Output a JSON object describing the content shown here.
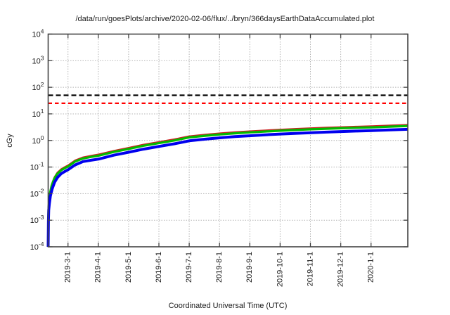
{
  "chart_data": {
    "type": "line",
    "title": "/data/run/goesPlots/archive/2020-02-06/flux/../bryn/366daysEarthDataAccumulated.plot",
    "xlabel": "Coordinated Universal Time (UTC)",
    "ylabel": "cGy",
    "y_scale": "log",
    "ylim": [
      0.0001,
      10000
    ],
    "y_tick_exponents": [
      4,
      3,
      2,
      1,
      0,
      -1,
      -2,
      -3,
      -4
    ],
    "y_tick_base": "10",
    "x_tick_labels": [
      "2019-3-1",
      "2019-4-1",
      "2019-5-1",
      "2019-6-1",
      "2019-7-1",
      "2019-8-1",
      "2019-9-1",
      "2019-10-1",
      "2019-11-1",
      "2019-12-1",
      "2020-1-1"
    ],
    "grid": true,
    "legend": "none",
    "thresholds": [
      {
        "name": "upper-limit-line",
        "value": 50,
        "color": "#000000",
        "style": "dashed"
      },
      {
        "name": "lower-limit-line",
        "value": 25,
        "color": "#ff0000",
        "style": "dashed"
      }
    ],
    "series": [
      {
        "name": "red-line",
        "color": "#cc2222",
        "width": 1.6,
        "points": [
          [
            0.02,
            0.00011
          ],
          [
            0.05,
            0.00023
          ],
          [
            0.2,
            0.0014
          ],
          [
            0.5,
            0.0034
          ],
          [
            1,
            0.0062
          ],
          [
            2,
            0.0124
          ],
          [
            3.5,
            0.023
          ],
          [
            6,
            0.041
          ],
          [
            9,
            0.062
          ],
          [
            13,
            0.085
          ],
          [
            17,
            0.104
          ],
          [
            20,
            0.119
          ],
          [
            27,
            0.181
          ],
          [
            35,
            0.237
          ],
          [
            43,
            0.271
          ],
          [
            51,
            0.305
          ],
          [
            66,
            0.418
          ],
          [
            81,
            0.542
          ],
          [
            96,
            0.712
          ],
          [
            112,
            0.904
          ],
          [
            127,
            1.13
          ],
          [
            142,
            1.47
          ],
          [
            158,
            1.7
          ],
          [
            173,
            1.9
          ],
          [
            188,
            2.09
          ],
          [
            204,
            2.28
          ],
          [
            219,
            2.46
          ],
          [
            234,
            2.63
          ],
          [
            250,
            2.8
          ],
          [
            265,
            2.96
          ],
          [
            280,
            3.11
          ],
          [
            295,
            3.25
          ],
          [
            310,
            3.39
          ],
          [
            326,
            3.53
          ],
          [
            344,
            3.73
          ],
          [
            362,
            3.95
          ]
        ]
      },
      {
        "name": "green-line",
        "color": "#00bb00",
        "width": 3.2,
        "points": [
          [
            0.02,
            0.0001
          ],
          [
            0.05,
            0.0002
          ],
          [
            0.2,
            0.0012
          ],
          [
            0.5,
            0.003
          ],
          [
            1,
            0.0055
          ],
          [
            2,
            0.011
          ],
          [
            3.5,
            0.02
          ],
          [
            6,
            0.036
          ],
          [
            9,
            0.055
          ],
          [
            13,
            0.075
          ],
          [
            17,
            0.092
          ],
          [
            20,
            0.105
          ],
          [
            27,
            0.16
          ],
          [
            35,
            0.21
          ],
          [
            43,
            0.24
          ],
          [
            51,
            0.27
          ],
          [
            66,
            0.37
          ],
          [
            81,
            0.48
          ],
          [
            96,
            0.63
          ],
          [
            112,
            0.8
          ],
          [
            127,
            1.0
          ],
          [
            142,
            1.3
          ],
          [
            158,
            1.5
          ],
          [
            173,
            1.68
          ],
          [
            188,
            1.85
          ],
          [
            204,
            2.02
          ],
          [
            219,
            2.18
          ],
          [
            234,
            2.33
          ],
          [
            250,
            2.48
          ],
          [
            265,
            2.62
          ],
          [
            280,
            2.75
          ],
          [
            295,
            2.88
          ],
          [
            310,
            3.0
          ],
          [
            326,
            3.12
          ],
          [
            344,
            3.3
          ],
          [
            362,
            3.5
          ]
        ]
      },
      {
        "name": "blue-line",
        "color": "#0000ee",
        "width": 4,
        "points": [
          [
            0.03,
            0.0001
          ],
          [
            0.07,
            0.00018
          ],
          [
            0.25,
            0.001
          ],
          [
            0.6,
            0.0024
          ],
          [
            1.2,
            0.0042
          ],
          [
            2.3,
            0.0082
          ],
          [
            4,
            0.015
          ],
          [
            6.5,
            0.027
          ],
          [
            9.5,
            0.041
          ],
          [
            13,
            0.056
          ],
          [
            17,
            0.069
          ],
          [
            20,
            0.079
          ],
          [
            27,
            0.12
          ],
          [
            35,
            0.16
          ],
          [
            43,
            0.18
          ],
          [
            51,
            0.2
          ],
          [
            66,
            0.28
          ],
          [
            81,
            0.36
          ],
          [
            96,
            0.47
          ],
          [
            112,
            0.6
          ],
          [
            127,
            0.75
          ],
          [
            142,
            0.97
          ],
          [
            158,
            1.12
          ],
          [
            173,
            1.26
          ],
          [
            188,
            1.39
          ],
          [
            204,
            1.51
          ],
          [
            219,
            1.63
          ],
          [
            234,
            1.75
          ],
          [
            250,
            1.86
          ],
          [
            265,
            1.96
          ],
          [
            280,
            2.06
          ],
          [
            295,
            2.16
          ],
          [
            310,
            2.25
          ],
          [
            326,
            2.34
          ],
          [
            344,
            2.48
          ],
          [
            362,
            2.62
          ]
        ]
      }
    ]
  }
}
